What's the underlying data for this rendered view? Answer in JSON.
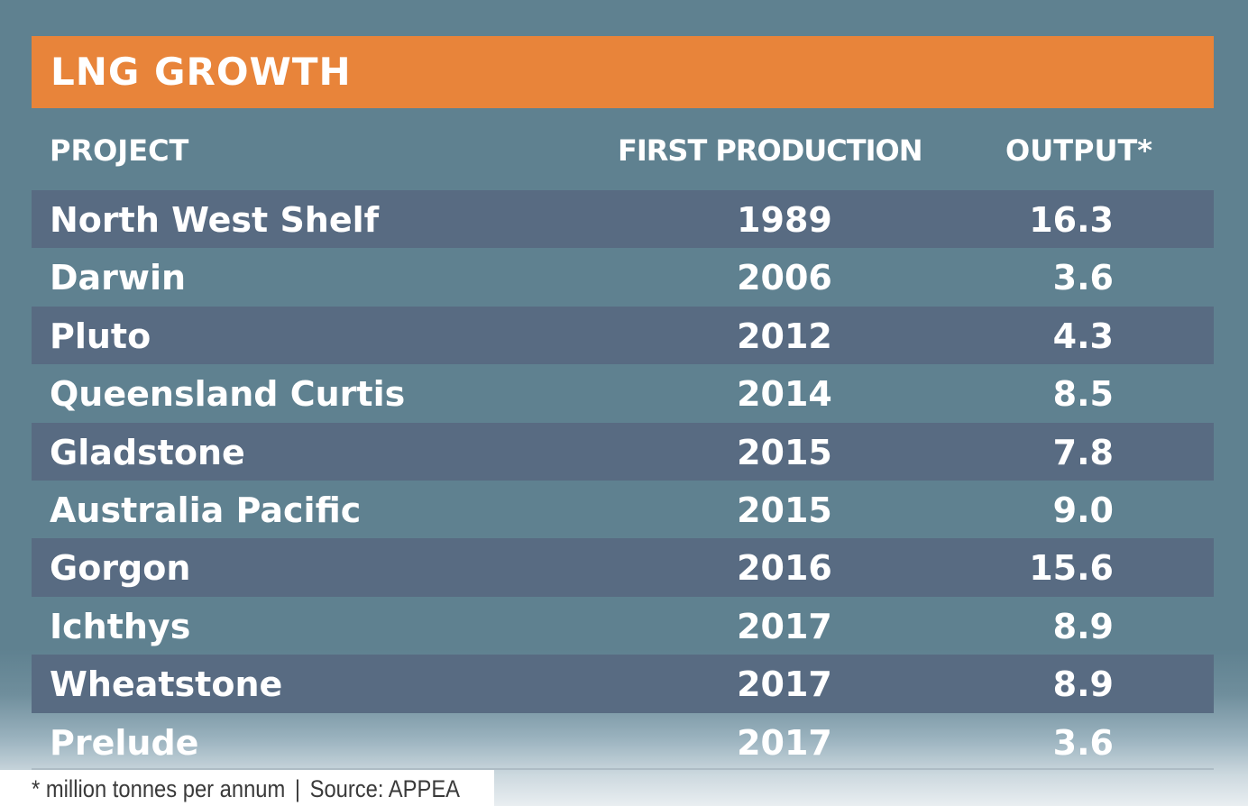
{
  "title": "LNG GROWTH",
  "colors": {
    "title_bar": "#e8843a",
    "background": "#5f8190",
    "row_stripe": "#586b82",
    "text": "#ffffff"
  },
  "chart_data": {
    "type": "table",
    "title": "LNG GROWTH",
    "columns": [
      "PROJECT",
      "FIRST PRODUCTION",
      "OUTPUT*"
    ],
    "rows": [
      {
        "project": "North West Shelf",
        "first_production": "1989",
        "output": "16.3"
      },
      {
        "project": "Darwin",
        "first_production": "2006",
        "output": "3.6"
      },
      {
        "project": "Pluto",
        "first_production": "2012",
        "output": "4.3"
      },
      {
        "project": "Queensland Curtis",
        "first_production": "2014",
        "output": "8.5"
      },
      {
        "project": "Gladstone",
        "first_production": "2015",
        "output": "7.8"
      },
      {
        "project": "Australia Pacific",
        "first_production": "2015",
        "output": "9.0"
      },
      {
        "project": "Gorgon",
        "first_production": "2016",
        "output": "15.6"
      },
      {
        "project": "Ichthys",
        "first_production": "2017",
        "output": "8.9"
      },
      {
        "project": "Wheatstone",
        "first_production": "2017",
        "output": "8.9"
      },
      {
        "project": "Prelude",
        "first_production": "2017",
        "output": "3.6"
      }
    ]
  },
  "footnote": {
    "unit": "* million tonnes per annum",
    "separator": "|",
    "source": "Source: APPEA"
  }
}
